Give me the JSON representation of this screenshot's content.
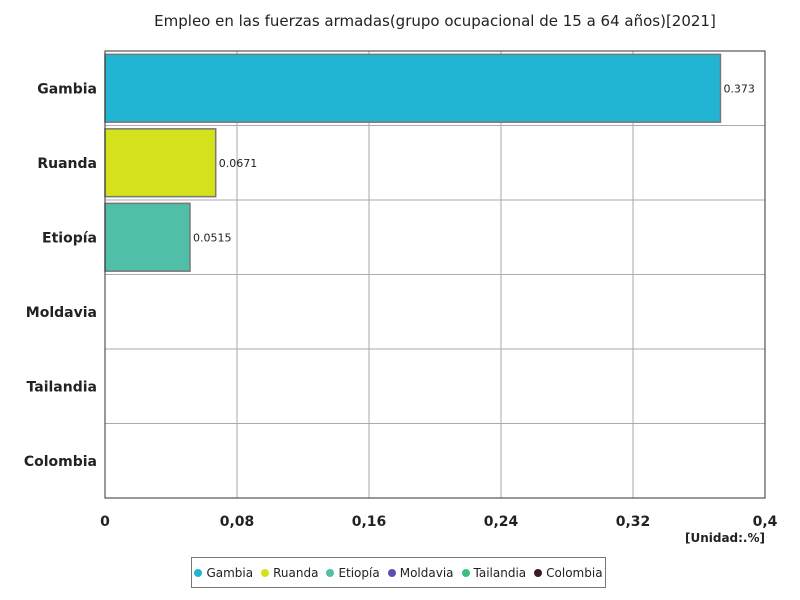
{
  "chart_data": {
    "type": "bar",
    "orientation": "horizontal",
    "title": "Empleo en las fuerzas armadas(grupo ocupacional de 15 a 64 años)[2021]",
    "unit_label": "[Unidad:.%]",
    "categories": [
      "Gambia",
      "Ruanda",
      "Etiopía",
      "Moldavia",
      "Tailandia",
      "Colombia"
    ],
    "values": [
      0.373,
      0.0671,
      0.0515,
      null,
      null,
      null
    ],
    "value_labels": [
      "0.373",
      "0.0671",
      "0.0515",
      "",
      "",
      ""
    ],
    "colors": [
      "#22b5d3",
      "#d4e21b",
      "#4fbfa8",
      "#5b4fb5",
      "#3cbf86",
      "#3d1a24"
    ],
    "xlim": [
      0,
      0.4
    ],
    "xticks": [
      0,
      0.08,
      0.16,
      0.24,
      0.32,
      0.4
    ],
    "xtick_labels": [
      "0",
      "0,08",
      "0,16",
      "0,24",
      "0,32",
      "0,4"
    ],
    "grid": true,
    "legend_position": "bottom",
    "legend": [
      "Gambia",
      "Ruanda",
      "Etiopía",
      "Moldavia",
      "Tailandia",
      "Colombia"
    ]
  }
}
